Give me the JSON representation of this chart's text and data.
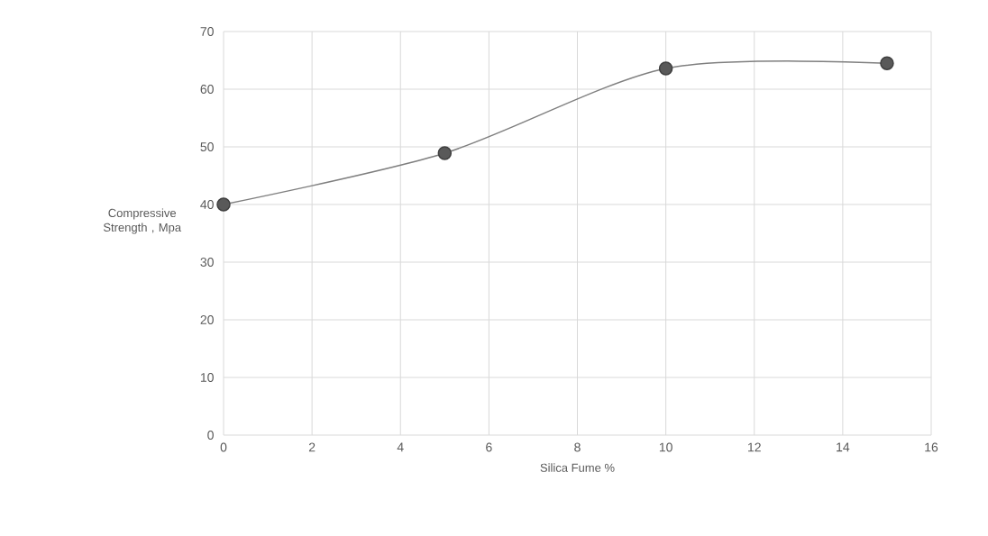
{
  "chart_data": {
    "type": "line",
    "xlabel": "Silica Fume %",
    "ylabel": "Compressive Strength , Mpa",
    "x": [
      0,
      5,
      10,
      15
    ],
    "series": [
      {
        "color": "#7f7f7f",
        "values": [
          40.0,
          48.9,
          63.6,
          64.5
        ]
      }
    ],
    "xlim": [
      0,
      16
    ],
    "ylim": [
      0,
      70
    ],
    "xticks": [
      0,
      2,
      4,
      6,
      8,
      10,
      12,
      14,
      16
    ],
    "yticks": [
      0,
      10,
      20,
      30,
      40,
      50,
      60,
      70
    ],
    "grid": true,
    "marker": "circle"
  }
}
